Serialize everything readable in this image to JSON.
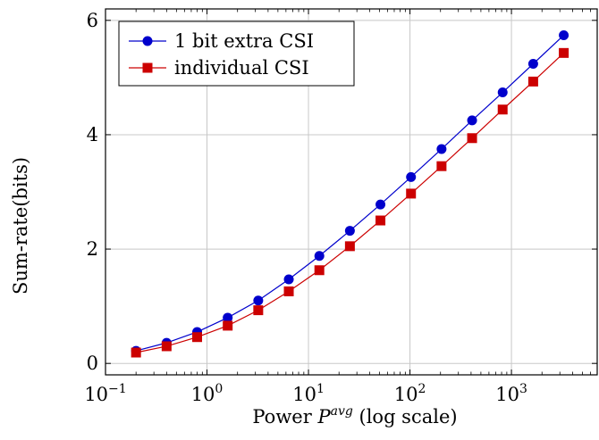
{
  "chart_data": {
    "type": "line",
    "x_scale": "log",
    "xlabel": "Power",
    "xlabel_symbol": "P",
    "xlabel_sup": "avg",
    "xlabel_suffix": "(log scale)",
    "ylabel": "Sum-rate(bits)",
    "xlim": [
      0.1,
      7000
    ],
    "ylim": [
      -0.2,
      6.2
    ],
    "x_ticks": [
      {
        "base": "10",
        "exp": "−1",
        "value": 0.1
      },
      {
        "base": "10",
        "exp": "0",
        "value": 1
      },
      {
        "base": "10",
        "exp": "1",
        "value": 10
      },
      {
        "base": "10",
        "exp": "2",
        "value": 100
      },
      {
        "base": "10",
        "exp": "3",
        "value": 1000
      }
    ],
    "y_ticks": [
      {
        "label": "0",
        "value": 0
      },
      {
        "label": "2",
        "value": 2
      },
      {
        "label": "4",
        "value": 4
      },
      {
        "label": "6",
        "value": 6
      }
    ],
    "grid": true,
    "legend_position": "top-left",
    "x": [
      0.2,
      0.4,
      0.8,
      1.6,
      3.2,
      6.4,
      12.8,
      25.6,
      51.2,
      102.4,
      204.8,
      409.6,
      819.2,
      1638.4,
      3276.8
    ],
    "series": [
      {
        "name": "1 bit extra CSI",
        "color": "#0000cc",
        "marker": "circle",
        "values": [
          0.22,
          0.36,
          0.55,
          0.8,
          1.1,
          1.47,
          1.88,
          2.32,
          2.78,
          3.26,
          3.75,
          4.25,
          4.74,
          5.24,
          5.74
        ]
      },
      {
        "name": "individual CSI",
        "color": "#cc0000",
        "marker": "square",
        "values": [
          0.19,
          0.3,
          0.46,
          0.66,
          0.93,
          1.26,
          1.63,
          2.05,
          2.5,
          2.97,
          3.45,
          3.94,
          4.44,
          4.93,
          5.43
        ]
      }
    ]
  }
}
